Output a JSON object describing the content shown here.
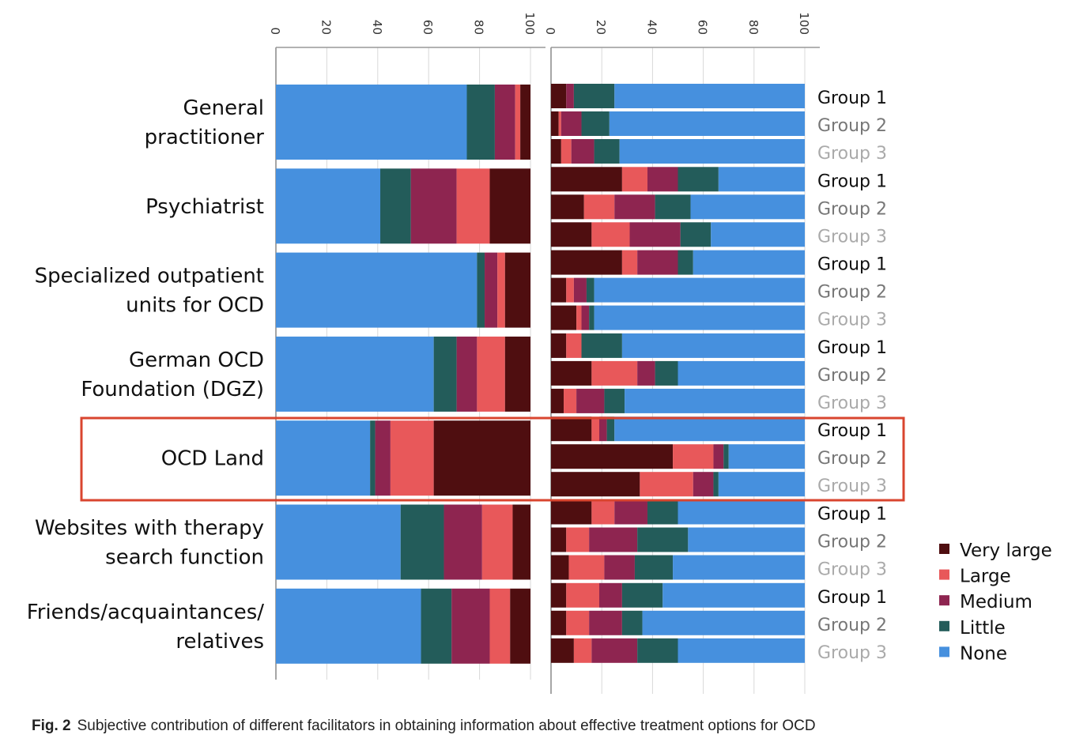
{
  "chart_data": {
    "type": "bar",
    "orientation": "horizontal-stacked",
    "caption_label": "Fig. 2",
    "caption": "Subjective contribution of different facilitators in obtaining information about effective treatment options for OCD",
    "categories": [
      [
        "General",
        "practitioner"
      ],
      [
        "Psychiatrist"
      ],
      [
        "Specialized outpatient",
        "units for OCD"
      ],
      [
        "German OCD",
        "Foundation (DGZ)"
      ],
      [
        "OCD Land"
      ],
      [
        "Websites with therapy",
        "search function"
      ],
      [
        "Friends/acquaintances/",
        "relatives"
      ]
    ],
    "highlighted_category": "OCD Land",
    "series_names": [
      "Very large",
      "Large",
      "Medium",
      "Little",
      "None"
    ],
    "colors": {
      "Very large": "#4f0e10",
      "Large": "#e8585a",
      "Medium": "#8e2550",
      "Little": "#235c5a",
      "None": "#4690de"
    },
    "xlim": [
      0,
      100
    ],
    "xticks": [
      "0",
      "20",
      "40",
      "60",
      "80",
      "100"
    ],
    "legend_position": "right",
    "group_labels": [
      "Group 1",
      "Group 2",
      "Group 3"
    ],
    "left_panel_overall": [
      {
        "Very large": 4,
        "Large": 2,
        "Medium": 8,
        "Little": 11,
        "None": 75
      },
      {
        "Very large": 16,
        "Large": 13,
        "Medium": 18,
        "Little": 12,
        "None": 41
      },
      {
        "Very large": 10,
        "Large": 3,
        "Medium": 5,
        "Little": 3,
        "None": 79
      },
      {
        "Very large": 10,
        "Large": 11,
        "Medium": 8,
        "Little": 9,
        "None": 62
      },
      {
        "Very large": 38,
        "Large": 17,
        "Medium": 6,
        "Little": 2,
        "None": 37
      },
      {
        "Very large": 7,
        "Large": 12,
        "Medium": 15,
        "Little": 17,
        "None": 49
      },
      {
        "Very large": 8,
        "Large": 8,
        "Medium": 15,
        "Little": 12,
        "None": 57
      }
    ],
    "right_panel_by_group": [
      [
        {
          "Very large": 6,
          "Large": 0,
          "Medium": 3,
          "Little": 16,
          "None": 75
        },
        {
          "Very large": 3,
          "Large": 1,
          "Medium": 8,
          "Little": 11,
          "None": 77
        },
        {
          "Very large": 4,
          "Large": 4,
          "Medium": 9,
          "Little": 10,
          "None": 73
        }
      ],
      [
        {
          "Very large": 28,
          "Large": 10,
          "Medium": 12,
          "Little": 16,
          "None": 34
        },
        {
          "Very large": 13,
          "Large": 12,
          "Medium": 16,
          "Little": 14,
          "None": 45
        },
        {
          "Very large": 16,
          "Large": 15,
          "Medium": 20,
          "Little": 12,
          "None": 37
        }
      ],
      [
        {
          "Very large": 28,
          "Large": 6,
          "Medium": 16,
          "Little": 6,
          "None": 44
        },
        {
          "Very large": 6,
          "Large": 3,
          "Medium": 5,
          "Little": 3,
          "None": 83
        },
        {
          "Very large": 10,
          "Large": 2,
          "Medium": 3,
          "Little": 2,
          "None": 83
        }
      ],
      [
        {
          "Very large": 6,
          "Large": 6,
          "Medium": 0,
          "Little": 16,
          "None": 72
        },
        {
          "Very large": 16,
          "Large": 18,
          "Medium": 7,
          "Little": 9,
          "None": 50
        },
        {
          "Very large": 5,
          "Large": 5,
          "Medium": 11,
          "Little": 8,
          "None": 71
        }
      ],
      [
        {
          "Very large": 16,
          "Large": 3,
          "Medium": 3,
          "Little": 3,
          "None": 75
        },
        {
          "Very large": 48,
          "Large": 16,
          "Medium": 4,
          "Little": 2,
          "None": 30
        },
        {
          "Very large": 35,
          "Large": 21,
          "Medium": 8,
          "Little": 2,
          "None": 34
        }
      ],
      [
        {
          "Very large": 16,
          "Large": 9,
          "Medium": 13,
          "Little": 12,
          "None": 50
        },
        {
          "Very large": 6,
          "Large": 9,
          "Medium": 19,
          "Little": 20,
          "None": 46
        },
        {
          "Very large": 7,
          "Large": 14,
          "Medium": 12,
          "Little": 15,
          "None": 52
        }
      ],
      [
        {
          "Very large": 6,
          "Large": 13,
          "Medium": 9,
          "Little": 16,
          "None": 56
        },
        {
          "Very large": 6,
          "Large": 9,
          "Medium": 13,
          "Little": 8,
          "None": 64
        },
        {
          "Very large": 9,
          "Large": 7,
          "Medium": 18,
          "Little": 16,
          "None": 50
        }
      ]
    ]
  }
}
